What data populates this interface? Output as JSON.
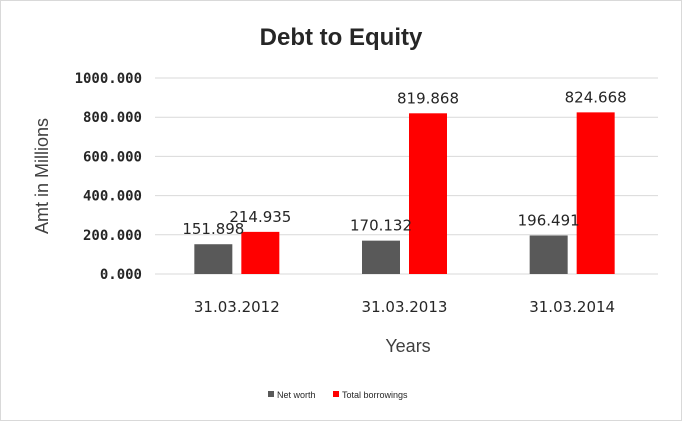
{
  "chart_data": {
    "type": "bar",
    "title": "Debt to Equity",
    "xlabel": "Years",
    "ylabel": "Amt in Millions",
    "categories": [
      "31.03.2012",
      "31.03.2013",
      "31.03.2014"
    ],
    "series": [
      {
        "name": "Net worth",
        "values": [
          151.898,
          170.132,
          196.491
        ],
        "color": "#595959"
      },
      {
        "name": "Total borrowings",
        "values": [
          214.935,
          819.868,
          824.668
        ],
        "color": "#ff0000"
      }
    ],
    "ylim": [
      0,
      1000
    ],
    "yticks": [
      "0.000",
      "200.000",
      "400.000",
      "600.000",
      "800.000",
      "1000.000"
    ],
    "data_labels": [
      [
        "151.898",
        "170.132",
        "196.491"
      ],
      [
        "214.935",
        "819.868",
        "824.668"
      ]
    ],
    "grid": true,
    "legend_position": "bottom"
  }
}
